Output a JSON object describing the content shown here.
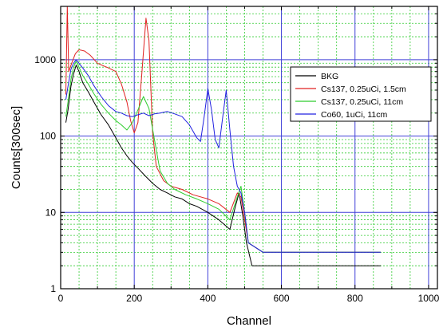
{
  "chart_data": {
    "type": "line",
    "title": "",
    "xlabel": "Channel",
    "ylabel": "Counts[300sec]",
    "xlim": [
      0,
      1024
    ],
    "ylim": [
      1,
      5000
    ],
    "y_scale": "log",
    "grid": true,
    "legend_position": "top-right",
    "x_ticks": [
      0,
      200,
      400,
      600,
      800,
      1000
    ],
    "x_tick_labels": [
      "0",
      "200",
      "400",
      "600",
      "800",
      "1000"
    ],
    "y_ticks": [
      1,
      10,
      100,
      1000
    ],
    "y_tick_labels": [
      "1",
      "10",
      "100",
      "1000"
    ],
    "colors": {
      "major_grid": "#4040d8",
      "minor_grid": "#33cc33",
      "frame": "#000000"
    },
    "series": [
      {
        "name": "BKG",
        "color": "#000000",
        "points": [
          [
            14,
            150
          ],
          [
            20,
            220
          ],
          [
            28,
            450
          ],
          [
            35,
            650
          ],
          [
            42,
            850
          ],
          [
            50,
            700
          ],
          [
            60,
            500
          ],
          [
            75,
            380
          ],
          [
            90,
            280
          ],
          [
            110,
            190
          ],
          [
            130,
            140
          ],
          [
            150,
            95
          ],
          [
            165,
            70
          ],
          [
            180,
            55
          ],
          [
            195,
            45
          ],
          [
            210,
            38
          ],
          [
            230,
            30
          ],
          [
            250,
            24
          ],
          [
            270,
            20
          ],
          [
            290,
            18
          ],
          [
            310,
            16
          ],
          [
            330,
            15
          ],
          [
            350,
            13
          ],
          [
            370,
            12
          ],
          [
            400,
            10
          ],
          [
            430,
            8
          ],
          [
            460,
            6
          ],
          [
            475,
            12
          ],
          [
            485,
            18
          ],
          [
            495,
            9
          ],
          [
            505,
            4
          ],
          [
            520,
            2
          ],
          [
            560,
            2
          ],
          [
            600,
            2
          ],
          [
            650,
            2
          ],
          [
            700,
            2
          ],
          [
            750,
            2
          ],
          [
            800,
            2
          ],
          [
            850,
            2
          ],
          [
            870,
            2
          ]
        ]
      },
      {
        "name": "Cs137, 0.25uCi, 1.5cm",
        "color": "#e02020",
        "points": [
          [
            14,
            350
          ],
          [
            18,
            5000
          ],
          [
            22,
            700
          ],
          [
            30,
            900
          ],
          [
            40,
            1200
          ],
          [
            50,
            1350
          ],
          [
            65,
            1300
          ],
          [
            80,
            1150
          ],
          [
            100,
            900
          ],
          [
            130,
            780
          ],
          [
            150,
            700
          ],
          [
            165,
            480
          ],
          [
            180,
            280
          ],
          [
            190,
            160
          ],
          [
            200,
            110
          ],
          [
            210,
            150
          ],
          [
            220,
            600
          ],
          [
            232,
            3500
          ],
          [
            240,
            1800
          ],
          [
            250,
            110
          ],
          [
            260,
            40
          ],
          [
            280,
            26
          ],
          [
            300,
            22
          ],
          [
            330,
            20
          ],
          [
            360,
            17
          ],
          [
            400,
            15
          ],
          [
            430,
            13
          ],
          [
            460,
            10
          ],
          [
            480,
            18
          ],
          [
            490,
            16
          ],
          [
            500,
            8
          ],
          [
            510,
            4
          ],
          [
            550,
            3
          ],
          [
            600,
            3
          ],
          [
            650,
            3
          ],
          [
            700,
            3
          ],
          [
            750,
            3
          ],
          [
            800,
            3
          ],
          [
            850,
            3
          ],
          [
            870,
            3
          ]
        ]
      },
      {
        "name": "Cs137, 0.25uCi, 11cm",
        "color": "#2ecc2e",
        "points": [
          [
            14,
            180
          ],
          [
            20,
            280
          ],
          [
            28,
            550
          ],
          [
            35,
            800
          ],
          [
            42,
            950
          ],
          [
            50,
            800
          ],
          [
            60,
            620
          ],
          [
            75,
            480
          ],
          [
            90,
            360
          ],
          [
            110,
            260
          ],
          [
            130,
            200
          ],
          [
            150,
            160
          ],
          [
            165,
            140
          ],
          [
            180,
            120
          ],
          [
            195,
            150
          ],
          [
            210,
            220
          ],
          [
            225,
            330
          ],
          [
            240,
            230
          ],
          [
            255,
            90
          ],
          [
            270,
            35
          ],
          [
            290,
            24
          ],
          [
            310,
            20
          ],
          [
            340,
            17
          ],
          [
            370,
            15
          ],
          [
            400,
            13
          ],
          [
            430,
            11
          ],
          [
            460,
            8
          ],
          [
            480,
            16
          ],
          [
            490,
            22
          ],
          [
            500,
            10
          ],
          [
            510,
            4
          ],
          [
            550,
            3
          ],
          [
            600,
            3
          ],
          [
            650,
            3
          ],
          [
            700,
            3
          ],
          [
            750,
            3
          ],
          [
            800,
            3
          ],
          [
            850,
            3
          ],
          [
            870,
            3
          ]
        ]
      },
      {
        "name": "Co60, 1uCi, 11cm",
        "color": "#2020e0",
        "points": [
          [
            14,
            300
          ],
          [
            20,
            450
          ],
          [
            28,
            750
          ],
          [
            35,
            900
          ],
          [
            42,
            1000
          ],
          [
            50,
            900
          ],
          [
            60,
            780
          ],
          [
            75,
            620
          ],
          [
            90,
            460
          ],
          [
            110,
            330
          ],
          [
            130,
            250
          ],
          [
            150,
            210
          ],
          [
            165,
            200
          ],
          [
            180,
            185
          ],
          [
            195,
            180
          ],
          [
            210,
            190
          ],
          [
            225,
            200
          ],
          [
            240,
            185
          ],
          [
            255,
            195
          ],
          [
            270,
            200
          ],
          [
            290,
            210
          ],
          [
            310,
            195
          ],
          [
            330,
            180
          ],
          [
            350,
            140
          ],
          [
            370,
            95
          ],
          [
            380,
            85
          ],
          [
            390,
            180
          ],
          [
            400,
            420
          ],
          [
            410,
            220
          ],
          [
            420,
            90
          ],
          [
            430,
            70
          ],
          [
            440,
            170
          ],
          [
            450,
            400
          ],
          [
            460,
            120
          ],
          [
            470,
            40
          ],
          [
            480,
            22
          ],
          [
            490,
            18
          ],
          [
            500,
            10
          ],
          [
            510,
            4
          ],
          [
            550,
            3
          ],
          [
            600,
            3
          ],
          [
            650,
            3
          ],
          [
            700,
            3
          ],
          [
            750,
            3
          ],
          [
            800,
            3
          ],
          [
            850,
            3
          ],
          [
            870,
            3
          ]
        ]
      }
    ]
  }
}
